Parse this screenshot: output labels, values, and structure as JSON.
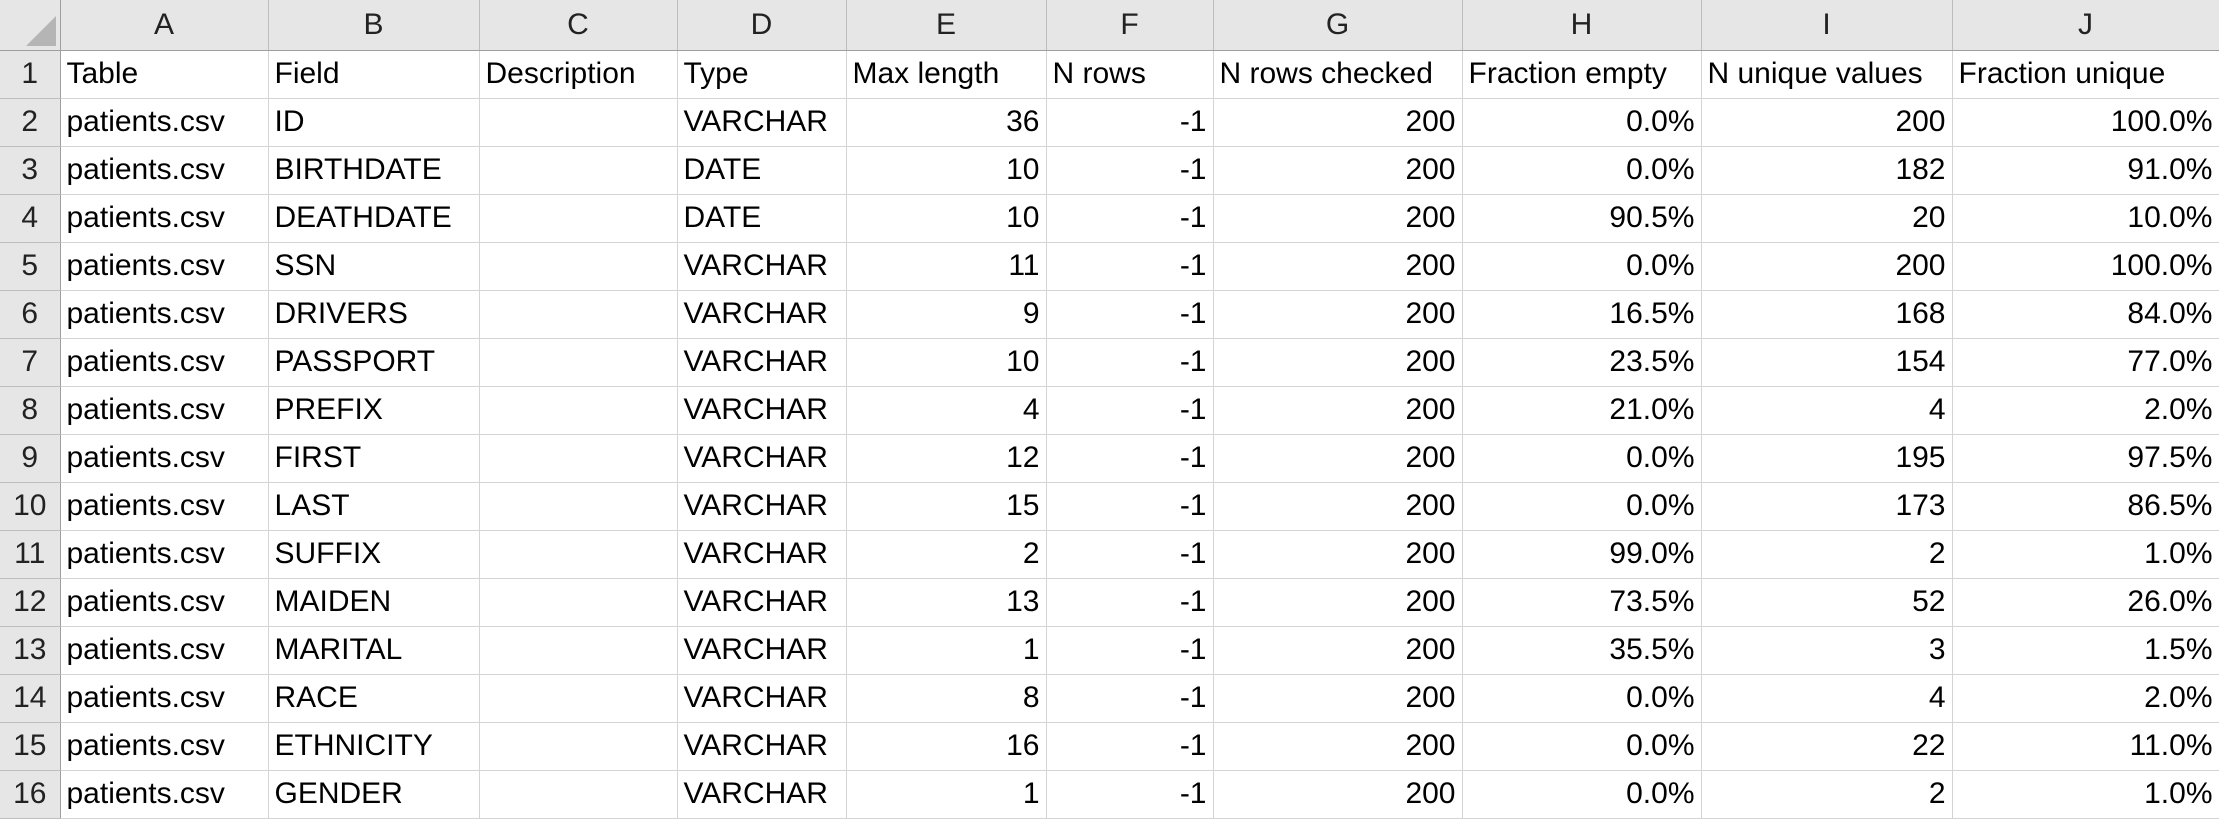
{
  "columns": [
    "A",
    "B",
    "C",
    "D",
    "E",
    "F",
    "G",
    "H",
    "I",
    "J"
  ],
  "header_row": {
    "row_number": "1",
    "cells": [
      "Table",
      "Field",
      "Description",
      "Type",
      "Max length",
      "N rows",
      "N rows checked",
      "Fraction empty",
      "N unique values",
      "Fraction unique"
    ]
  },
  "rows": [
    {
      "row_number": "2",
      "cells": [
        "patients.csv",
        "ID",
        "",
        "VARCHAR",
        "36",
        "-1",
        "200",
        "0.0%",
        "200",
        "100.0%"
      ]
    },
    {
      "row_number": "3",
      "cells": [
        "patients.csv",
        "BIRTHDATE",
        "",
        "DATE",
        "10",
        "-1",
        "200",
        "0.0%",
        "182",
        "91.0%"
      ]
    },
    {
      "row_number": "4",
      "cells": [
        "patients.csv",
        "DEATHDATE",
        "",
        "DATE",
        "10",
        "-1",
        "200",
        "90.5%",
        "20",
        "10.0%"
      ]
    },
    {
      "row_number": "5",
      "cells": [
        "patients.csv",
        "SSN",
        "",
        "VARCHAR",
        "11",
        "-1",
        "200",
        "0.0%",
        "200",
        "100.0%"
      ]
    },
    {
      "row_number": "6",
      "cells": [
        "patients.csv",
        "DRIVERS",
        "",
        "VARCHAR",
        "9",
        "-1",
        "200",
        "16.5%",
        "168",
        "84.0%"
      ]
    },
    {
      "row_number": "7",
      "cells": [
        "patients.csv",
        "PASSPORT",
        "",
        "VARCHAR",
        "10",
        "-1",
        "200",
        "23.5%",
        "154",
        "77.0%"
      ]
    },
    {
      "row_number": "8",
      "cells": [
        "patients.csv",
        "PREFIX",
        "",
        "VARCHAR",
        "4",
        "-1",
        "200",
        "21.0%",
        "4",
        "2.0%"
      ]
    },
    {
      "row_number": "9",
      "cells": [
        "patients.csv",
        "FIRST",
        "",
        "VARCHAR",
        "12",
        "-1",
        "200",
        "0.0%",
        "195",
        "97.5%"
      ]
    },
    {
      "row_number": "10",
      "cells": [
        "patients.csv",
        "LAST",
        "",
        "VARCHAR",
        "15",
        "-1",
        "200",
        "0.0%",
        "173",
        "86.5%"
      ]
    },
    {
      "row_number": "11",
      "cells": [
        "patients.csv",
        "SUFFIX",
        "",
        "VARCHAR",
        "2",
        "-1",
        "200",
        "99.0%",
        "2",
        "1.0%"
      ]
    },
    {
      "row_number": "12",
      "cells": [
        "patients.csv",
        "MAIDEN",
        "",
        "VARCHAR",
        "13",
        "-1",
        "200",
        "73.5%",
        "52",
        "26.0%"
      ]
    },
    {
      "row_number": "13",
      "cells": [
        "patients.csv",
        "MARITAL",
        "",
        "VARCHAR",
        "1",
        "-1",
        "200",
        "35.5%",
        "3",
        "1.5%"
      ]
    },
    {
      "row_number": "14",
      "cells": [
        "patients.csv",
        "RACE",
        "",
        "VARCHAR",
        "8",
        "-1",
        "200",
        "0.0%",
        "4",
        "2.0%"
      ]
    },
    {
      "row_number": "15",
      "cells": [
        "patients.csv",
        "ETHNICITY",
        "",
        "VARCHAR",
        "16",
        "-1",
        "200",
        "0.0%",
        "22",
        "11.0%"
      ]
    },
    {
      "row_number": "16",
      "cells": [
        "patients.csv",
        "GENDER",
        "",
        "VARCHAR",
        "1",
        "-1",
        "200",
        "0.0%",
        "2",
        "1.0%"
      ]
    }
  ]
}
